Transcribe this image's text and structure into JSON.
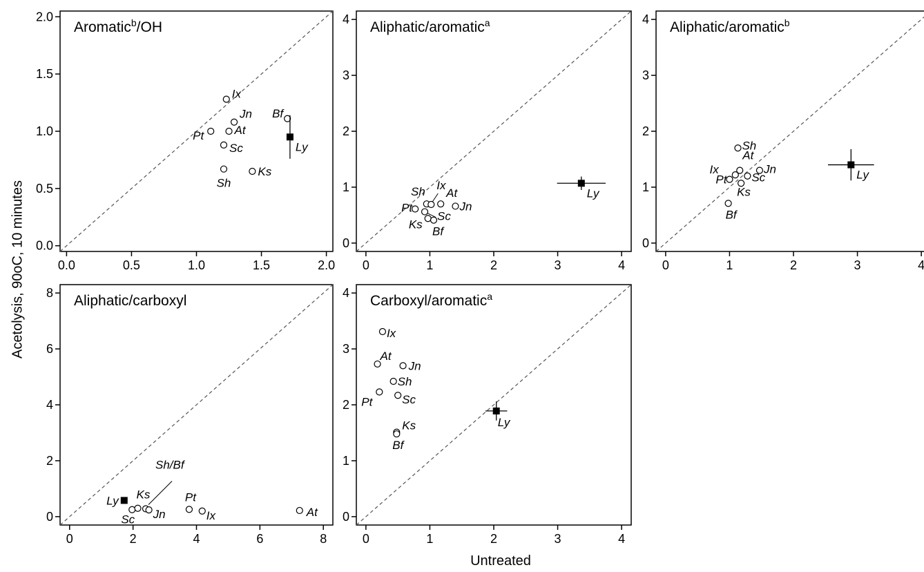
{
  "figure": {
    "ylabel": "Acetolysis, 90oC, 10 minutes",
    "xlabel": "Untreated"
  },
  "chart_data": [
    {
      "type": "scatter",
      "title": "Aromatic",
      "title_sup": "b",
      "title_suffix": "/OH",
      "xlim": [
        -0.05,
        2.05
      ],
      "ylim": [
        -0.05,
        2.05
      ],
      "xticks": [
        "0.0",
        "0.5",
        "1.0",
        "1.5",
        "2.0"
      ],
      "yticks": [
        "0.0",
        "0.5",
        "1.0",
        "1.5",
        "2.0"
      ],
      "xtick_values": [
        0,
        0.5,
        1,
        1.5,
        2
      ],
      "ytick_values": [
        0,
        0.5,
        1,
        1.5,
        2
      ],
      "diagonal": true,
      "points": [
        {
          "label": "Ix",
          "x": 1.23,
          "y": 1.28
        },
        {
          "label": "Jn",
          "x": 1.29,
          "y": 1.08
        },
        {
          "label": "At",
          "x": 1.25,
          "y": 1.0
        },
        {
          "label": "Pt",
          "x": 1.11,
          "y": 1.0
        },
        {
          "label": "Sc",
          "x": 1.21,
          "y": 0.88
        },
        {
          "label": "Sh",
          "x": 1.21,
          "y": 0.67
        },
        {
          "label": "Ks",
          "x": 1.43,
          "y": 0.65
        },
        {
          "label": "Bf",
          "x": 1.7,
          "y": 1.11
        }
      ],
      "highlight": {
        "label": "Ly",
        "x": 1.72,
        "y": 0.95,
        "xerr": 0,
        "yerr": 0.19
      }
    },
    {
      "type": "scatter",
      "title": "Aliphatic/aromatic",
      "title_sup": "a",
      "title_suffix": "",
      "xlim": [
        -0.15,
        4.15
      ],
      "ylim": [
        -0.15,
        4.15
      ],
      "xticks": [
        "0",
        "1",
        "2",
        "3",
        "4"
      ],
      "yticks": [
        "0",
        "1",
        "2",
        "3",
        "4"
      ],
      "xtick_values": [
        0,
        1,
        2,
        3,
        4
      ],
      "ytick_values": [
        0,
        1,
        2,
        3,
        4
      ],
      "diagonal": true,
      "points": [
        {
          "label": "Sh",
          "x": 0.95,
          "y": 0.7
        },
        {
          "label": "Ix",
          "x": 1.02,
          "y": 0.69
        },
        {
          "label": "At",
          "x": 1.17,
          "y": 0.7
        },
        {
          "label": "Jn",
          "x": 1.4,
          "y": 0.66
        },
        {
          "label": "Pt",
          "x": 0.77,
          "y": 0.61
        },
        {
          "label": "Sc",
          "x": 0.92,
          "y": 0.56
        },
        {
          "label": "Ks",
          "x": 0.97,
          "y": 0.44
        },
        {
          "label": "Bf",
          "x": 1.06,
          "y": 0.41
        }
      ],
      "highlight": {
        "label": "Ly",
        "x": 3.37,
        "y": 1.07,
        "xerr": 0.38,
        "yerr": 0.12
      }
    },
    {
      "type": "scatter",
      "title": "Aliphatic/aromatic",
      "title_sup": "b",
      "title_suffix": "",
      "xlim": [
        -0.15,
        4.15
      ],
      "ylim": [
        -0.15,
        4.15
      ],
      "xticks": [
        "0",
        "1",
        "2",
        "3",
        "4"
      ],
      "yticks": [
        "0",
        "1",
        "2",
        "3",
        "4"
      ],
      "xtick_values": [
        0,
        1,
        2,
        3,
        4
      ],
      "ytick_values": [
        0,
        1,
        2,
        3,
        4
      ],
      "diagonal": true,
      "points": [
        {
          "label": "Sh",
          "x": 1.13,
          "y": 1.7
        },
        {
          "label": "At",
          "x": 1.16,
          "y": 1.3
        },
        {
          "label": "Ix",
          "x": 1.09,
          "y": 1.22
        },
        {
          "label": "Jn",
          "x": 1.47,
          "y": 1.3
        },
        {
          "label": "Pt",
          "x": 1.0,
          "y": 1.14
        },
        {
          "label": "Sc",
          "x": 1.28,
          "y": 1.2
        },
        {
          "label": "Ks",
          "x": 1.18,
          "y": 1.07
        },
        {
          "label": "Bf",
          "x": 0.98,
          "y": 0.71
        }
      ],
      "highlight": {
        "label": "Ly",
        "x": 2.9,
        "y": 1.4,
        "xerr": 0.36,
        "yerr": 0.28
      }
    },
    {
      "type": "scatter",
      "title": "Aliphatic/carboxyl",
      "title_sup": "",
      "title_suffix": "",
      "xlim": [
        -0.3,
        8.3
      ],
      "ylim": [
        -0.3,
        8.3
      ],
      "xticks": [
        "0",
        "2",
        "4",
        "6",
        "8"
      ],
      "yticks": [
        "0",
        "2",
        "4",
        "6",
        "8"
      ],
      "xtick_values": [
        0,
        2,
        4,
        6,
        8
      ],
      "ytick_values": [
        0,
        2,
        4,
        6,
        8
      ],
      "diagonal": true,
      "points": [
        {
          "label": "Sc",
          "x": 1.97,
          "y": 0.25
        },
        {
          "label": "Ks",
          "x": 2.15,
          "y": 0.3
        },
        {
          "label": "Sh/Bf",
          "x": 2.4,
          "y": 0.28
        },
        {
          "label": "Jn",
          "x": 2.5,
          "y": 0.24
        },
        {
          "label": "Pt",
          "x": 3.77,
          "y": 0.26
        },
        {
          "label": "Ix",
          "x": 4.18,
          "y": 0.2
        },
        {
          "label": "At",
          "x": 7.25,
          "y": 0.22
        }
      ],
      "highlight": {
        "label": "Ly",
        "x": 1.72,
        "y": 0.58,
        "xerr": 0,
        "yerr": 0
      }
    },
    {
      "type": "scatter",
      "title": "Carboxyl/aromatic",
      "title_sup": "a",
      "title_suffix": "",
      "xlim": [
        -0.15,
        4.15
      ],
      "ylim": [
        -0.15,
        4.15
      ],
      "xticks": [
        "0",
        "1",
        "2",
        "3",
        "4"
      ],
      "yticks": [
        "0",
        "1",
        "2",
        "3",
        "4"
      ],
      "xtick_values": [
        0,
        1,
        2,
        3,
        4
      ],
      "ytick_values": [
        0,
        1,
        2,
        3,
        4
      ],
      "diagonal": true,
      "points": [
        {
          "label": "Ix",
          "x": 0.26,
          "y": 3.31
        },
        {
          "label": "At",
          "x": 0.18,
          "y": 2.73
        },
        {
          "label": "Jn",
          "x": 0.58,
          "y": 2.7
        },
        {
          "label": "Sh",
          "x": 0.43,
          "y": 2.42
        },
        {
          "label": "Pt",
          "x": 0.21,
          "y": 2.23
        },
        {
          "label": "Sc",
          "x": 0.5,
          "y": 2.17
        },
        {
          "label": "Ks",
          "x": 0.48,
          "y": 1.51
        },
        {
          "label": "Bf",
          "x": 0.48,
          "y": 1.48
        }
      ],
      "highlight": {
        "label": "Ly",
        "x": 2.04,
        "y": 1.89,
        "xerr": 0.17,
        "yerr": 0.17
      }
    }
  ]
}
